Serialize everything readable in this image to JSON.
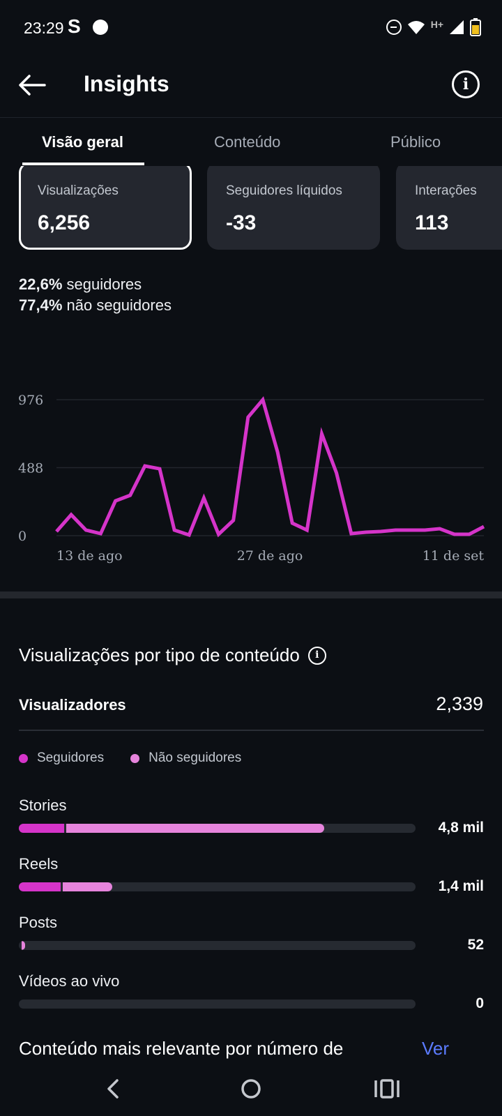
{
  "status_bar": {
    "time": "23:29",
    "app_icon_1": "S",
    "network_label": "H+",
    "icons": [
      "s-app-icon",
      "app-icon",
      "do-not-disturb-icon",
      "wifi-icon",
      "signal-icon",
      "battery-icon"
    ]
  },
  "header": {
    "title": "Insights",
    "back_icon": "arrow-left-icon",
    "info_icon": "info-icon"
  },
  "tabs": [
    {
      "label": "Visão geral",
      "active": true
    },
    {
      "label": "Conteúdo",
      "active": false
    },
    {
      "label": "Público",
      "active": false
    }
  ],
  "metrics": [
    {
      "label": "Visualizações",
      "value": "6,256",
      "selected": true
    },
    {
      "label": "Seguidores líquidos",
      "value": "-33",
      "selected": false
    },
    {
      "label": "Interações",
      "value": "113",
      "selected": false
    }
  ],
  "audience_share": {
    "followers_pct": "22,6%",
    "followers_label": "seguidores",
    "non_followers_pct": "77,4%",
    "non_followers_label": "não seguidores"
  },
  "chart_data": {
    "type": "line",
    "title": "",
    "xlabel": "",
    "ylabel": "",
    "y_ticks": [
      "976",
      "488",
      "0"
    ],
    "ylim": [
      0,
      976
    ],
    "x_tick_labels": [
      "13 de ago",
      "27 de ago",
      "11 de set"
    ],
    "color": "#d534c9",
    "series": [
      {
        "values": [
          30,
          150,
          40,
          15,
          250,
          290,
          500,
          480,
          40,
          5,
          270,
          10,
          110,
          850,
          975,
          600,
          90,
          40,
          730,
          450,
          15,
          25,
          30,
          40,
          40,
          40,
          50,
          10,
          10,
          65
        ]
      }
    ]
  },
  "content_type": {
    "title": "Visualizações por tipo de conteúdo",
    "viewers_label": "Visualizadores",
    "viewers_value": "2,339",
    "legend": [
      {
        "label": "Seguidores",
        "color": "#d534c9"
      },
      {
        "label": "Não seguidores",
        "color": "#e684dc"
      }
    ],
    "rows": [
      {
        "label": "Stories",
        "value": "4,8 mil",
        "followers_fraction": 0.115,
        "non_followers_fraction": 0.65
      },
      {
        "label": "Reels",
        "value": "1,4 mil",
        "followers_fraction": 0.105,
        "non_followers_fraction": 0.125
      },
      {
        "label": "Posts",
        "value": "52",
        "followers_fraction": 0.0,
        "non_followers_fraction": 0.008
      },
      {
        "label": "Vídeos ao vivo",
        "value": "0",
        "followers_fraction": 0.0,
        "non_followers_fraction": 0.0
      }
    ]
  },
  "top_content": {
    "title": "Conteúdo mais relevante por número de",
    "link": "Ver"
  },
  "nav_bar": {
    "icons": [
      "nav-back-icon",
      "nav-home-icon",
      "nav-recents-icon"
    ]
  }
}
